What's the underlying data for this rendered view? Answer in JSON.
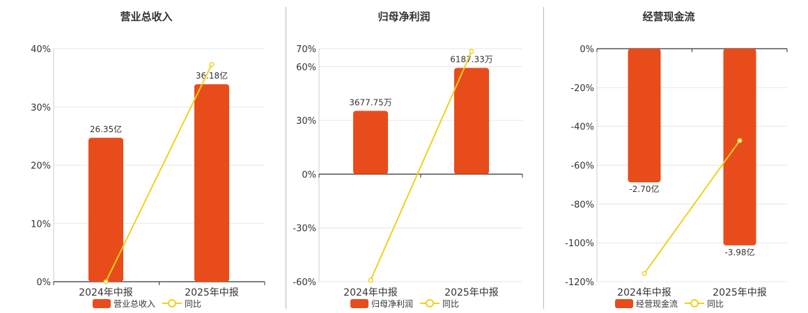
{
  "colors": {
    "bar": "#e84c1a",
    "line": "#f0d11d",
    "grid": "#e6e6e6",
    "axis": "#333333",
    "text": "#333333"
  },
  "chart_data": [
    {
      "type": "bar",
      "title": "营业总收入",
      "categories": [
        "2024年中报",
        "2025年中报"
      ],
      "ylim": [
        0,
        40
      ],
      "yticks": [
        0,
        10,
        20,
        30,
        40
      ],
      "ytick_labels": [
        "0%",
        "10%",
        "20%",
        "30%",
        "40%"
      ],
      "grid": true,
      "legend_position": "bottom",
      "series": [
        {
          "name": "营业总收入",
          "type": "bar",
          "values": [
            24.7,
            33.9
          ],
          "labels": [
            "26.35亿",
            "36.18亿"
          ]
        },
        {
          "name": "同比",
          "type": "line",
          "values": [
            0.0,
            37.3
          ]
        }
      ]
    },
    {
      "type": "bar",
      "title": "归母净利润",
      "categories": [
        "2024年中报",
        "2025年中报"
      ],
      "ylim": [
        -60,
        70
      ],
      "yticks": [
        -60,
        -30,
        0,
        30,
        60,
        70
      ],
      "ytick_labels": [
        "-60%",
        "-30%",
        "0%",
        "30%",
        "60%",
        "70%"
      ],
      "grid": true,
      "legend_position": "bottom",
      "series": [
        {
          "name": "归母净利润",
          "type": "bar",
          "values": [
            35.3,
            59.3
          ],
          "labels": [
            "3677.75万",
            "6187.33万"
          ]
        },
        {
          "name": "同比",
          "type": "line",
          "values": [
            -59.2,
            68.5
          ]
        }
      ]
    },
    {
      "type": "bar",
      "title": "经营现金流",
      "categories": [
        "2024年中报",
        "2025年中报"
      ],
      "ylim": [
        -120,
        0
      ],
      "yticks": [
        -120,
        -100,
        -80,
        -60,
        -40,
        -20,
        0
      ],
      "ytick_labels": [
        "-120%",
        "-100%",
        "-80%",
        "-60%",
        "-40%",
        "-20%",
        "0%"
      ],
      "grid": true,
      "legend_position": "bottom",
      "series": [
        {
          "name": "经营现金流",
          "type": "bar",
          "values": [
            -68.8,
            -101.3
          ],
          "labels": [
            "-2.70亿",
            "-3.98亿"
          ]
        },
        {
          "name": "同比",
          "type": "line",
          "values": [
            -115.8,
            -47.3
          ]
        }
      ]
    }
  ]
}
